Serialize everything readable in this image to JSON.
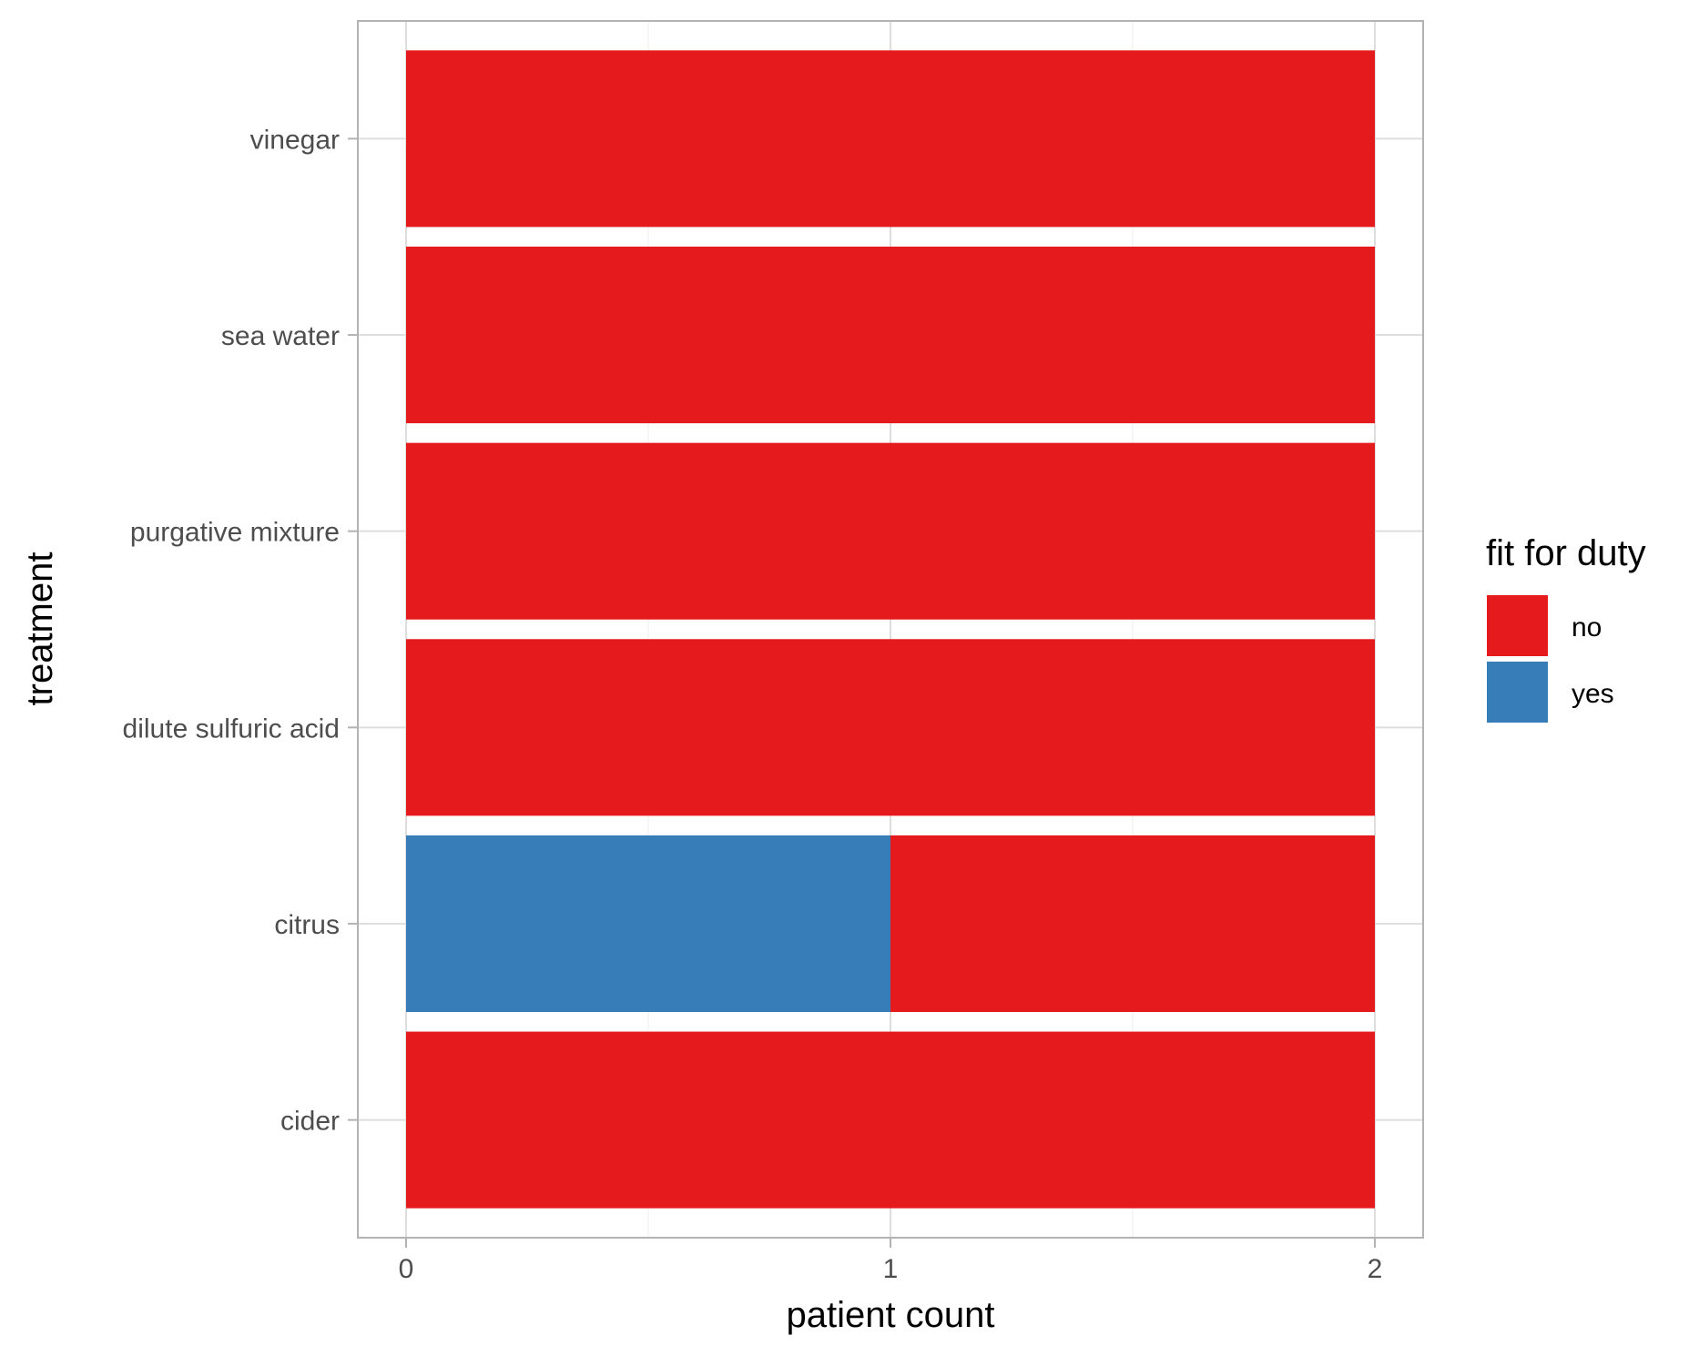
{
  "chart_data": {
    "type": "bar",
    "orientation": "horizontal",
    "stacked": true,
    "xlabel": "patient count",
    "ylabel": "treatment",
    "xlim": [
      0,
      2
    ],
    "x_ticks": [
      0,
      1,
      2
    ],
    "grid": true,
    "legend": {
      "title": "fit for duty",
      "position": "right",
      "entries": [
        {
          "label": "no",
          "color": "#E41A1C"
        },
        {
          "label": "yes",
          "color": "#377EB8"
        }
      ]
    },
    "categories": [
      "vinegar",
      "sea water",
      "purgative mixture",
      "dilute sulfuric acid",
      "citrus",
      "cider"
    ],
    "series": [
      {
        "name": "yes",
        "color": "#377EB8",
        "values": [
          0,
          0,
          0,
          0,
          1,
          0
        ]
      },
      {
        "name": "no",
        "color": "#E41A1C",
        "values": [
          2,
          2,
          2,
          2,
          1,
          2
        ]
      }
    ]
  }
}
